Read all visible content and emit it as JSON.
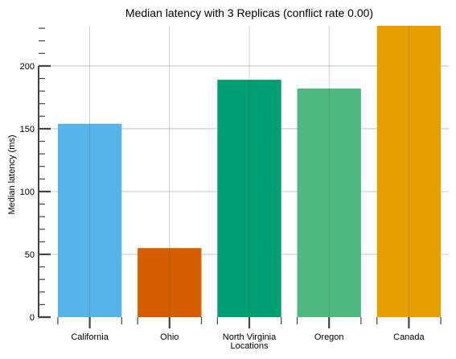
{
  "chart_data": {
    "type": "bar",
    "title": "Median latency with 3 Replicas (conflict rate 0.00)",
    "xlabel": "Locations",
    "ylabel": "Median latency (ms)",
    "categories": [
      "California",
      "Ohio",
      "North Virginia",
      "Oregon",
      "Canada"
    ],
    "values": [
      154,
      55,
      189,
      182,
      232
    ],
    "colors": [
      "#56B4E9",
      "#D55E00",
      "#009E73",
      "#4EB880",
      "#E69F00"
    ],
    "ylim": [
      0,
      232
    ],
    "yticks": [
      0,
      50,
      100,
      150,
      200
    ],
    "grid": true,
    "legend": "none"
  }
}
